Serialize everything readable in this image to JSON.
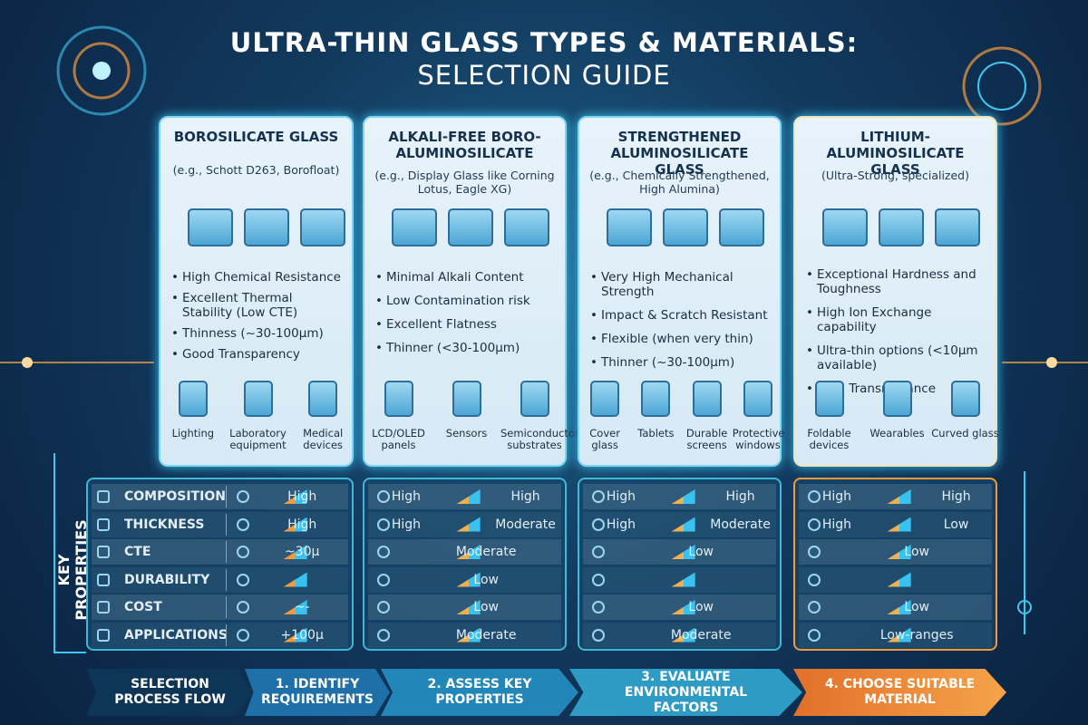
{
  "title": "ULTRA-THIN GLASS TYPES & MATERIALS:",
  "subtitle": "SELECTION GUIDE",
  "cards": [
    {
      "name": "BOROSILICATE GLASS",
      "example": "(e.g., Schott D263, Borofloat)",
      "bullets": [
        "High Chemical Resistance",
        "Excellent Thermal Stability (Low CTE)",
        "Thinness (~30-100μm)",
        "Good Transparency"
      ],
      "apps": [
        "Lighting",
        "Laboratory equipment",
        "Medical devices"
      ]
    },
    {
      "name": "ALKALI-FREE BORO-ALUMINOSILICATE",
      "example": "(e.g., Display Glass like Corning Lotus, Eagle XG)",
      "bullets": [
        "Minimal Alkali Content",
        "Low Contamination risk",
        "Excellent Flatness",
        "Thinner (<30-100μm)"
      ],
      "apps": [
        "LCD/OLED panels",
        "Sensors",
        "Semiconductor substrates"
      ]
    },
    {
      "name": "STRENGTHENED ALUMINOSILICATE GLASS",
      "example": "(e.g., Chemically Strengthened, High Alumina)",
      "bullets": [
        "Very High Mechanical Strength",
        "Impact & Scratch Resistant",
        "Flexible (when very thin)",
        "Thinner (~30-100μm)"
      ],
      "apps": [
        "Cover glass",
        "Tablets",
        "Durable screens",
        "Protective windows"
      ]
    },
    {
      "name": "LITHIUM-ALUMINOSILICATE GLASS",
      "example": "(Ultra-Strong, specialized)",
      "bullets": [
        "Exceptional Hardness and Toughness",
        "High Ion Exchange capability",
        "Ultra-thin options (<10μm available)",
        "High Transmittance"
      ],
      "apps": [
        "Foldable devices",
        "Wearables",
        "Curved glass"
      ]
    }
  ],
  "properties": {
    "label": "KEY PROPERTIES",
    "rows": [
      "COMPOSITION",
      "THICKNESS",
      "CTE",
      "DURABILITY",
      "COST",
      "APPLICATIONS"
    ],
    "columns": [
      [
        [
          "High"
        ],
        [
          "High"
        ],
        [
          "~30μ"
        ],
        [],
        [
          "~-"
        ],
        [
          "+100μ"
        ]
      ],
      [
        [
          "High",
          "High"
        ],
        [
          "High",
          "Moderate"
        ],
        [
          "Moderate"
        ],
        [
          "Low"
        ],
        [
          "Low"
        ],
        [
          "Moderate"
        ]
      ],
      [
        [
          "High",
          "High"
        ],
        [
          "High",
          "Moderate"
        ],
        [
          "Low"
        ],
        [],
        [
          "Low"
        ],
        [
          "Moderate"
        ]
      ],
      [
        [
          "High",
          "High"
        ],
        [
          "High",
          "Low"
        ],
        [
          "Low"
        ],
        [],
        [
          "Low"
        ],
        [
          "Low-ranges"
        ]
      ]
    ]
  },
  "flow": [
    "SELECTION PROCESS FLOW",
    "1. IDENTIFY REQUIREMENTS",
    "2. ASSESS KEY PROPERTIES",
    "3. EVALUATE ENVIRONMENTAL FACTORS",
    "4. CHOOSE SUITABLE MATERIAL"
  ]
}
